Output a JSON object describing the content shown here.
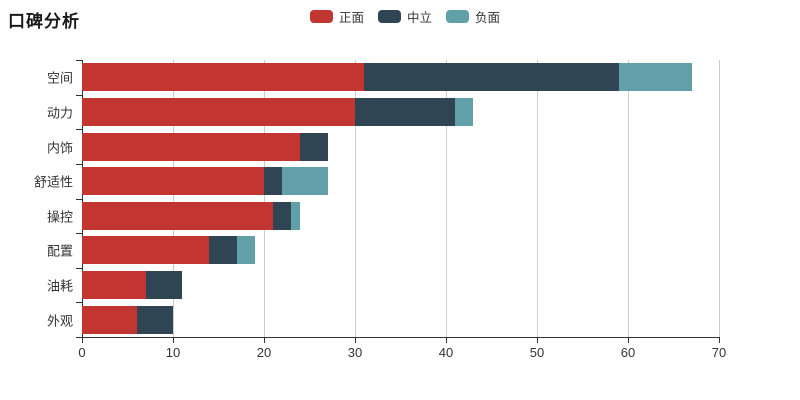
{
  "title": "口碑分析",
  "legend": {
    "items": [
      {
        "label": "正面",
        "color": "#c23531"
      },
      {
        "label": "中立",
        "color": "#2f4554"
      },
      {
        "label": "负面",
        "color": "#61a0a8"
      }
    ]
  },
  "colors": {
    "positive": "#c23531",
    "neutral": "#2f4554",
    "negative": "#61a0a8",
    "grid": "#cccccc",
    "axis": "#333333",
    "text": "#333333",
    "background": "#ffffff"
  },
  "chart_data": {
    "type": "bar",
    "orientation": "horizontal",
    "stacked": true,
    "title": "口碑分析",
    "categories": [
      "空间",
      "动力",
      "内饰",
      "舒适性",
      "操控",
      "配置",
      "油耗",
      "外观"
    ],
    "series": [
      {
        "name": "正面",
        "key": "positive",
        "color": "#c23531",
        "values": [
          31,
          30,
          24,
          20,
          21,
          14,
          7,
          6
        ]
      },
      {
        "name": "中立",
        "key": "neutral",
        "color": "#2f4554",
        "values": [
          28,
          11,
          3,
          2,
          2,
          3,
          4,
          4
        ]
      },
      {
        "name": "负面",
        "key": "negative",
        "color": "#61a0a8",
        "values": [
          8,
          2,
          0,
          5,
          1,
          2,
          0,
          0
        ]
      }
    ],
    "totals": [
      67,
      43,
      27,
      27,
      24,
      19,
      11,
      10
    ],
    "xlim": [
      0,
      70
    ],
    "x_ticks": [
      0,
      10,
      20,
      30,
      40,
      50,
      60,
      70
    ],
    "xlabel": "",
    "ylabel": "",
    "grid": true,
    "legend_position": "top"
  }
}
